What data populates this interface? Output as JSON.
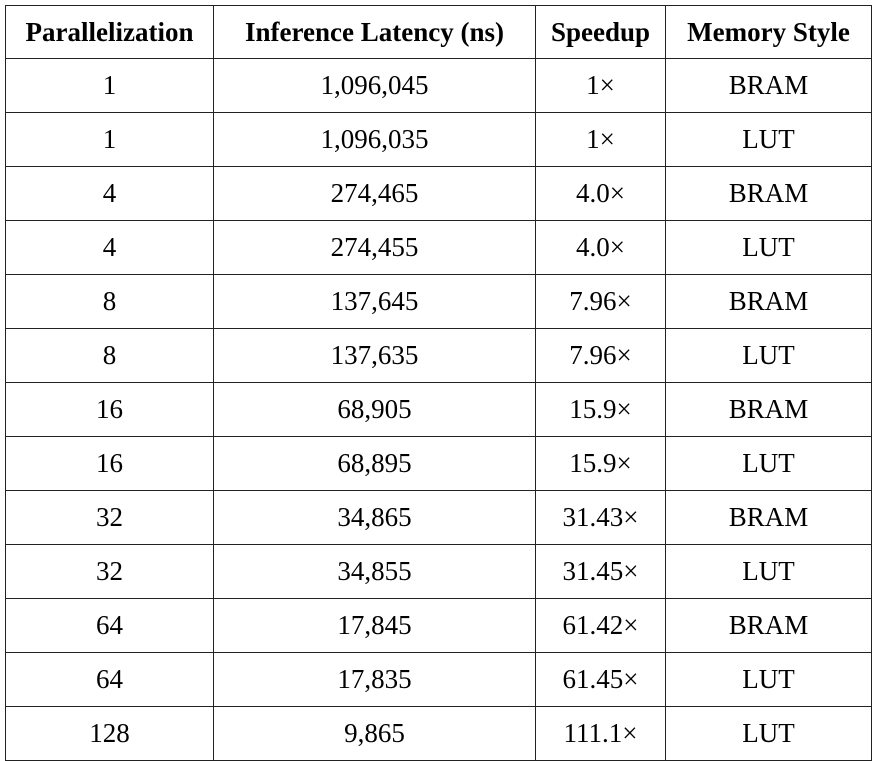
{
  "table": {
    "headers": [
      "Parallelization",
      "Inference Latency (ns)",
      "Speedup",
      "Memory Style"
    ],
    "rows": [
      [
        "1",
        "1,096,045",
        "1×",
        "BRAM"
      ],
      [
        "1",
        "1,096,035",
        "1×",
        "LUT"
      ],
      [
        "4",
        "274,465",
        "4.0×",
        "BRAM"
      ],
      [
        "4",
        "274,455",
        "4.0×",
        "LUT"
      ],
      [
        "8",
        "137,645",
        "7.96×",
        "BRAM"
      ],
      [
        "8",
        "137,635",
        "7.96×",
        "LUT"
      ],
      [
        "16",
        "68,905",
        "15.9×",
        "BRAM"
      ],
      [
        "16",
        "68,895",
        "15.9×",
        "LUT"
      ],
      [
        "32",
        "34,865",
        "31.43×",
        "BRAM"
      ],
      [
        "32",
        "34,855",
        "31.45×",
        "LUT"
      ],
      [
        "64",
        "17,845",
        "61.42×",
        "BRAM"
      ],
      [
        "64",
        "17,835",
        "61.45×",
        "LUT"
      ],
      [
        "128",
        "9,865",
        "111.1×",
        "LUT"
      ]
    ]
  }
}
